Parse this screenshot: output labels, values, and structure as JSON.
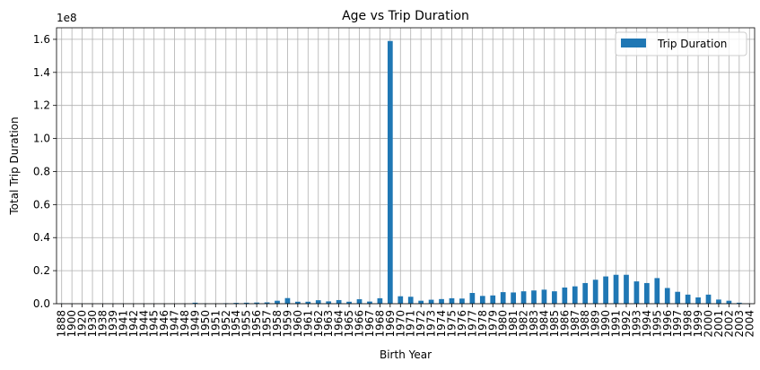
{
  "chart_data": {
    "type": "bar",
    "title": "Age vs Trip Duration",
    "xlabel": "Birth Year",
    "ylabel": "Total Trip Duration",
    "y_multiplier_label": "1e8",
    "y_multiplier": 100000000,
    "ylim": [
      0,
      1.67
    ],
    "yticks": [
      0.0,
      0.2,
      0.4,
      0.6,
      0.8,
      1.0,
      1.2,
      1.4,
      1.6
    ],
    "ytick_labels": [
      "0.0",
      "0.2",
      "0.4",
      "0.6",
      "0.8",
      "1.0",
      "1.2",
      "1.4",
      "1.6"
    ],
    "grid": true,
    "legend_position": "top-right",
    "color": "#1f77b4",
    "categories": [
      "1888",
      "1900",
      "1920",
      "1930",
      "1938",
      "1939",
      "1941",
      "1942",
      "1944",
      "1945",
      "1946",
      "1947",
      "1948",
      "1949",
      "1950",
      "1951",
      "1952",
      "1954",
      "1955",
      "1956",
      "1957",
      "1958",
      "1959",
      "1960",
      "1961",
      "1962",
      "1963",
      "1964",
      "1965",
      "1966",
      "1967",
      "1968",
      "1969",
      "1970",
      "1971",
      "1972",
      "1973",
      "1974",
      "1975",
      "1976",
      "1977",
      "1978",
      "1979",
      "1980",
      "1981",
      "1982",
      "1983",
      "1984",
      "1985",
      "1986",
      "1987",
      "1988",
      "1989",
      "1990",
      "1991",
      "1992",
      "1993",
      "1994",
      "1995",
      "1996",
      "1997",
      "1998",
      "1999",
      "2000",
      "2001",
      "2002",
      "2003",
      "2004"
    ],
    "series": [
      {
        "name": "Trip Duration",
        "values": [
          0.001,
          0.0005,
          0.0005,
          0.0005,
          0.0005,
          0.0005,
          0.0005,
          0.0005,
          0.0005,
          0.0005,
          0.0005,
          0.0005,
          0.001,
          0.006,
          0.002,
          0.001,
          0.003,
          0.005,
          0.006,
          0.007,
          0.008,
          0.018,
          0.034,
          0.012,
          0.012,
          0.021,
          0.014,
          0.022,
          0.012,
          0.027,
          0.013,
          0.033,
          1.59,
          0.045,
          0.042,
          0.018,
          0.024,
          0.028,
          0.033,
          0.031,
          0.065,
          0.047,
          0.05,
          0.07,
          0.068,
          0.075,
          0.08,
          0.085,
          0.075,
          0.098,
          0.105,
          0.125,
          0.145,
          0.165,
          0.175,
          0.175,
          0.135,
          0.125,
          0.155,
          0.095,
          0.072,
          0.055,
          0.038,
          0.055,
          0.025,
          0.018,
          0.006,
          0.001
        ]
      }
    ]
  }
}
